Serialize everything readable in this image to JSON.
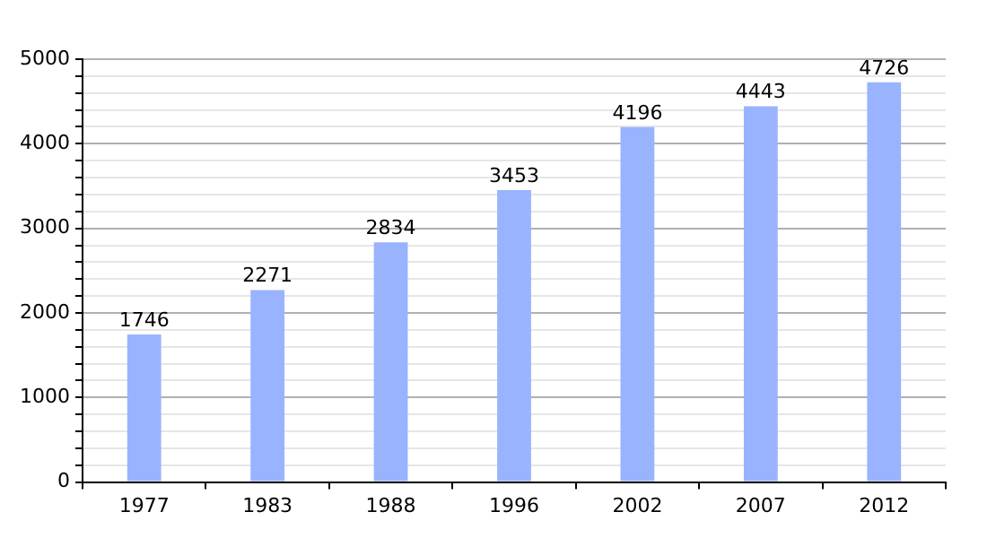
{
  "chart_data": {
    "type": "bar",
    "categories": [
      "1977",
      "1983",
      "1988",
      "1996",
      "2002",
      "2007",
      "2012"
    ],
    "values": [
      1746,
      2271,
      2834,
      3453,
      4196,
      4443,
      4726
    ],
    "color": "#99b3ff",
    "ylim": [
      0,
      5000
    ],
    "yticks": [
      0,
      {
        "value": 200,
        "label": null
      },
      {
        "value": 400,
        "label": null
      },
      {
        "value": 600,
        "label": null
      },
      {
        "value": 800,
        "label": null
      },
      1000,
      {
        "value": 1200,
        "label": null
      },
      {
        "value": 1400,
        "label": null
      },
      {
        "value": 1600,
        "label": null
      },
      {
        "value": 1800,
        "label": null
      },
      2000,
      {
        "value": 2200,
        "label": null
      },
      {
        "value": 2400,
        "label": null
      },
      {
        "value": 2600,
        "label": null
      },
      {
        "value": 2800,
        "label": null
      },
      3000,
      {
        "value": 3200,
        "label": null
      },
      {
        "value": 3400,
        "label": null
      },
      {
        "value": 3600,
        "label": null
      },
      {
        "value": 3800,
        "label": null
      },
      4000,
      {
        "value": 4200,
        "label": null
      },
      {
        "value": 4400,
        "label": null
      },
      {
        "value": 4600,
        "label": null
      },
      {
        "value": 4800,
        "label": null
      },
      5000
    ],
    "grid": true,
    "data_labels": true,
    "legend": false
  }
}
